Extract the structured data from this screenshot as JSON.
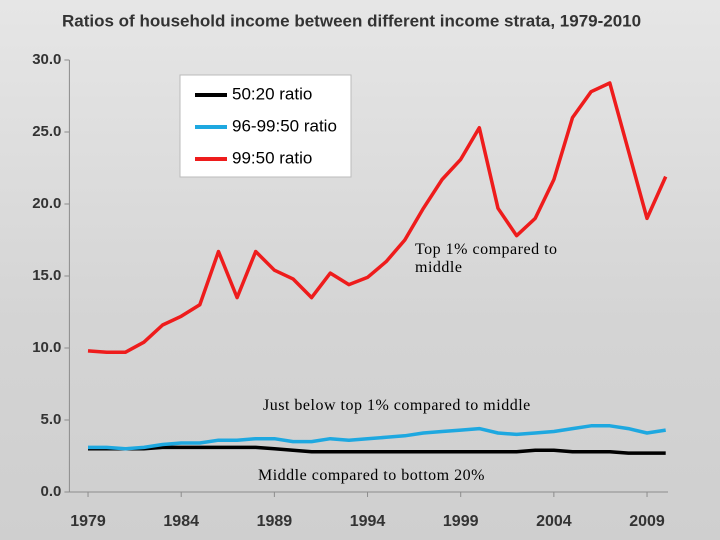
{
  "chart_data": {
    "type": "line",
    "title": "Ratios of household income between different income strata, 1979-2010",
    "x": [
      1979,
      1980,
      1981,
      1982,
      1983,
      1984,
      1985,
      1986,
      1987,
      1988,
      1989,
      1990,
      1991,
      1992,
      1993,
      1994,
      1995,
      1996,
      1997,
      1998,
      1999,
      2000,
      2001,
      2002,
      2003,
      2004,
      2005,
      2006,
      2007,
      2008,
      2009,
      2010
    ],
    "series": [
      {
        "name": "50:20 ratio",
        "color": "#000000",
        "values": [
          3.0,
          3.0,
          3.0,
          3.0,
          3.1,
          3.1,
          3.1,
          3.1,
          3.1,
          3.1,
          3.0,
          2.9,
          2.8,
          2.8,
          2.8,
          2.8,
          2.8,
          2.8,
          2.8,
          2.8,
          2.8,
          2.8,
          2.8,
          2.8,
          2.9,
          2.9,
          2.8,
          2.8,
          2.8,
          2.7,
          2.7,
          2.7
        ]
      },
      {
        "name": "96-99:50 ratio",
        "color": "#1ea8e0",
        "values": [
          3.1,
          3.1,
          3.0,
          3.1,
          3.3,
          3.4,
          3.4,
          3.6,
          3.6,
          3.7,
          3.7,
          3.5,
          3.5,
          3.7,
          3.6,
          3.7,
          3.8,
          3.9,
          4.1,
          4.2,
          4.3,
          4.4,
          4.1,
          4.0,
          4.1,
          4.2,
          4.4,
          4.6,
          4.6,
          4.4,
          4.1,
          4.3
        ]
      },
      {
        "name": "99:50 ratio",
        "color": "#ee1c1c",
        "values": [
          9.8,
          9.7,
          9.7,
          10.4,
          11.6,
          12.2,
          13.0,
          16.7,
          13.5,
          16.7,
          15.4,
          14.8,
          13.5,
          15.2,
          14.4,
          14.9,
          16.0,
          17.5,
          19.7,
          21.7,
          23.1,
          25.3,
          19.7,
          17.8,
          19.0,
          21.7,
          26.0,
          27.8,
          28.4,
          23.7,
          19.0,
          21.9
        ]
      }
    ],
    "xlim": [
      1978,
      2011
    ],
    "xticks": [
      1979,
      1984,
      1989,
      1994,
      1999,
      2004,
      2009
    ],
    "ylim": [
      0,
      30
    ],
    "yticks": [
      {
        "value": 0,
        "label": "0.0"
      },
      {
        "value": 5,
        "label": "5.0"
      },
      {
        "value": 10,
        "label": "10.0"
      },
      {
        "value": 15,
        "label": "15.0"
      },
      {
        "value": 20,
        "label": "20.0"
      },
      {
        "value": 25,
        "label": "25.0"
      },
      {
        "value": 30,
        "label": "30.0"
      }
    ],
    "grid": false,
    "legend": "upper left",
    "annotations": [
      "Top 1% compared to middle",
      "Just below top 1% compared to middle",
      "Middle compared to bottom 20%"
    ]
  }
}
